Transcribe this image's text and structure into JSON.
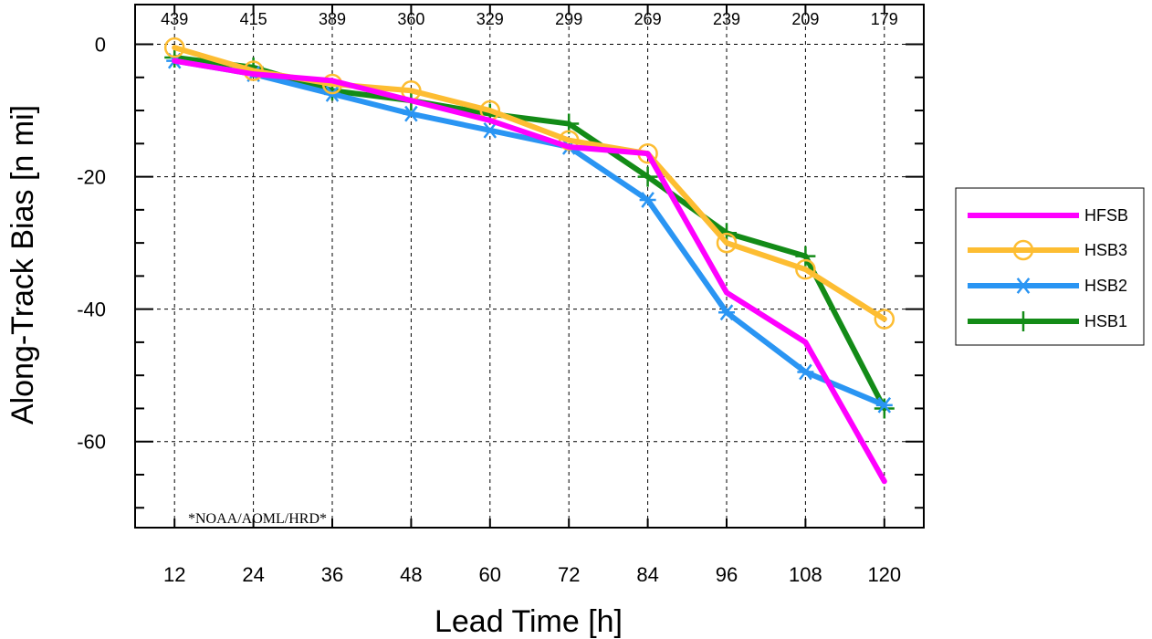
{
  "chart_data": {
    "type": "line",
    "xlabel": "Lead Time [h]",
    "ylabel": "Along-Track Bias [n mi]",
    "x": [
      12,
      24,
      36,
      48,
      60,
      72,
      84,
      96,
      108,
      120
    ],
    "xlim": [
      6,
      126
    ],
    "ylim": [
      -73,
      6
    ],
    "yticks": [
      0,
      -20,
      -40,
      -60
    ],
    "grid": true,
    "legend_position": "right",
    "counts": [
      439,
      415,
      389,
      360,
      329,
      299,
      269,
      239,
      209,
      179
    ],
    "note": "*NOAA/AOML/HRD*",
    "series": [
      {
        "name": "HFSB",
        "color": "#ff00ff",
        "marker": "dot",
        "values": [
          -2.5,
          -4.5,
          -5.5,
          -8.5,
          -11.5,
          -15.5,
          -16.5,
          -37.5,
          -45,
          -66
        ]
      },
      {
        "name": "HSB3",
        "color": "#fdbd32",
        "marker": "circle",
        "values": [
          -0.5,
          -4,
          -6,
          -7,
          -10,
          -14.5,
          -16.5,
          -30,
          -34,
          -41.5
        ]
      },
      {
        "name": "HSB2",
        "color": "#2a95f3",
        "marker": "asterisk",
        "values": [
          -2.5,
          -4.5,
          -7.5,
          -10.5,
          -13,
          -15.5,
          -23.5,
          -40.5,
          -49.5,
          -54.5
        ]
      },
      {
        "name": "HSB1",
        "color": "#138b17",
        "marker": "plus",
        "values": [
          -2,
          -3.5,
          -7,
          -8.5,
          -10.5,
          -12,
          -20,
          -28.5,
          -32,
          -55
        ]
      }
    ]
  }
}
